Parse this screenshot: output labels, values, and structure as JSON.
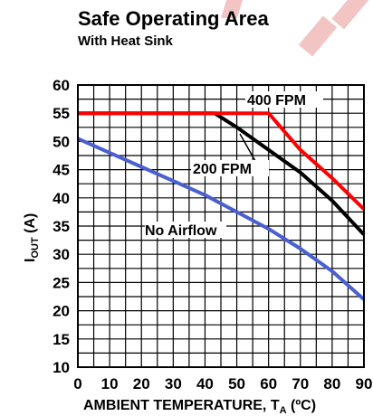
{
  "chart_data": {
    "type": "line",
    "title": "Safe Operating Area",
    "subtitle": "With Heat Sink",
    "xlabel_main": "AMBIENT TEMPERATURE, T",
    "xlabel_sub": "A",
    "xlabel_unit": " (ºC)",
    "ylabel_main": "I",
    "ylabel_sub": "OUT",
    "ylabel_unit": " (A)",
    "xlim": [
      0,
      90
    ],
    "ylim": [
      10,
      60
    ],
    "xticks": [
      0,
      10,
      20,
      30,
      40,
      50,
      60,
      70,
      80,
      90
    ],
    "yticks": [
      10,
      15,
      20,
      25,
      30,
      35,
      40,
      45,
      50,
      55,
      60
    ],
    "grid": true,
    "series": [
      {
        "name": "400 FPM",
        "color": "#ff0000",
        "x": [
          0,
          60,
          70,
          80,
          90
        ],
        "y": [
          55,
          55,
          48.5,
          43.5,
          38
        ]
      },
      {
        "name": "200 FPM",
        "color": "#000000",
        "x": [
          0,
          43,
          50,
          60,
          70,
          80,
          90
        ],
        "y": [
          55,
          55,
          52.5,
          48.5,
          44.5,
          39.5,
          33.5
        ]
      },
      {
        "name": "No Airflow",
        "color": "#4a5fd0",
        "x": [
          0,
          10,
          20,
          30,
          40,
          50,
          60,
          70,
          80,
          90
        ],
        "y": [
          50.5,
          48,
          45.5,
          43,
          40.5,
          37.5,
          34.5,
          31,
          27,
          22
        ]
      }
    ]
  }
}
